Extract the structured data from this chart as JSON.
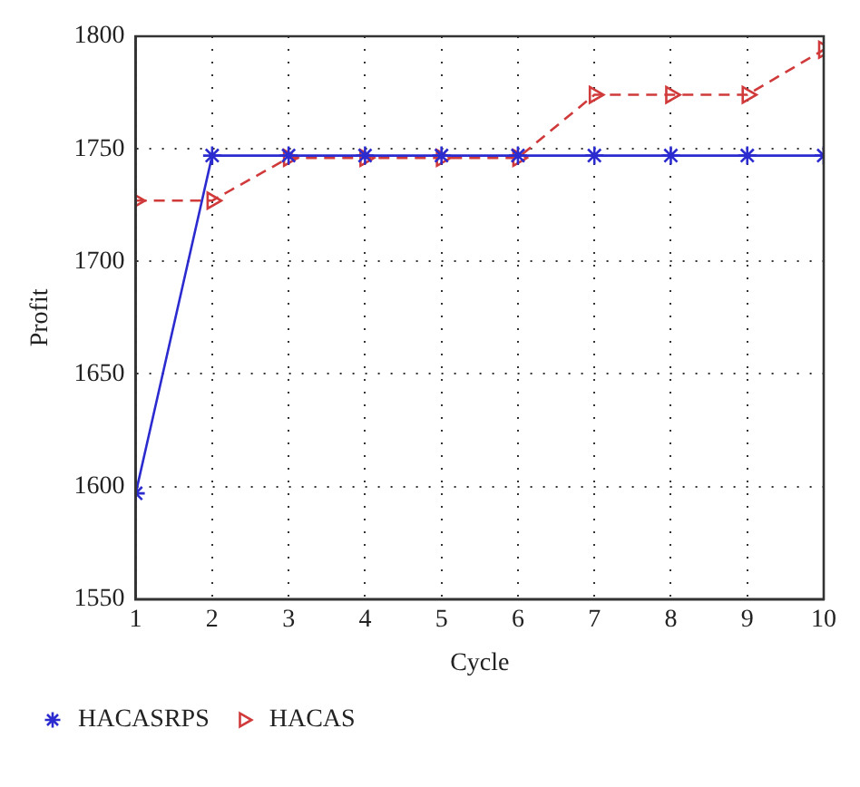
{
  "chart_data": {
    "type": "line",
    "xlabel": "Cycle",
    "ylabel": "Profit",
    "x": [
      1,
      2,
      3,
      4,
      5,
      6,
      7,
      8,
      9,
      10
    ],
    "series": [
      {
        "name": "HACASRPS",
        "color": "#2b2bd0",
        "marker": "cross",
        "line_style": "solid",
        "values": [
          1597,
          1747,
          1747,
          1747,
          1747,
          1747,
          1747,
          1747,
          1747,
          1747
        ]
      },
      {
        "name": "HACAS",
        "color": "#d03a3a",
        "marker": "triangle",
        "line_style": "dashed",
        "values": [
          1727,
          1727,
          1746,
          1746,
          1746,
          1746,
          1774,
          1774,
          1774,
          1794
        ]
      }
    ],
    "xlim": [
      1,
      10
    ],
    "xticks": [
      1,
      2,
      3,
      4,
      5,
      6,
      7,
      8,
      9,
      10
    ],
    "ylim": [
      1550,
      1800
    ],
    "yticks": [
      1550,
      1600,
      1650,
      1700,
      1750,
      1800
    ],
    "grid": true,
    "legend": "bottom"
  }
}
